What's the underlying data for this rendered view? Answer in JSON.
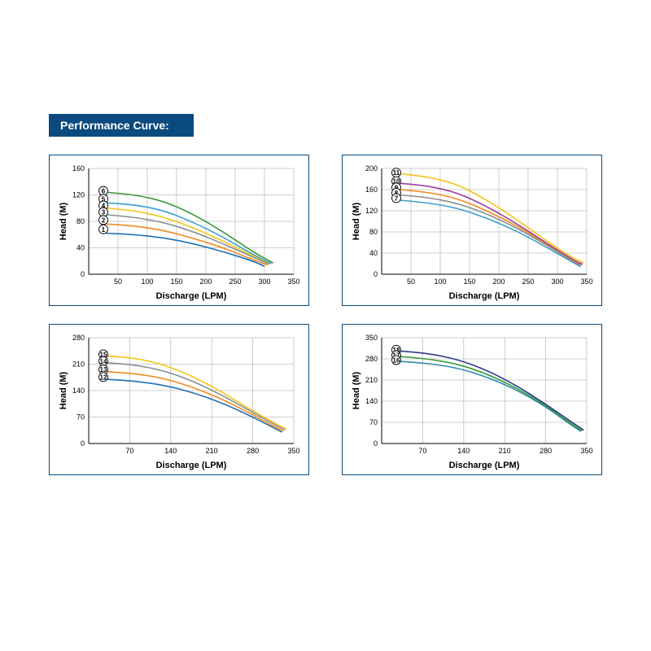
{
  "title": "Performance Curve:",
  "title_bg": "#0b4a7e",
  "panel_border": "#0b4a7e",
  "grid_color": "#bfbfbf",
  "axis_color": "#000000",
  "background": "#ffffff",
  "xlabel": "Discharge (LPM)",
  "ylabel": "Head (M)",
  "label_fontsize": 11,
  "tick_fontsize": 9,
  "panels": [
    {
      "xlim": [
        0,
        350
      ],
      "xticks": [
        50,
        100,
        150,
        200,
        250,
        300,
        350
      ],
      "ylim": [
        0,
        160
      ],
      "yticks": [
        0,
        40,
        80,
        120,
        160
      ],
      "markers": [
        {
          "id": "6",
          "y": 126
        },
        {
          "id": "5",
          "y": 114
        },
        {
          "id": "4",
          "y": 104
        },
        {
          "id": "3",
          "y": 94
        },
        {
          "id": "2",
          "y": 82
        },
        {
          "id": "1",
          "y": 68
        }
      ],
      "series": [
        {
          "id": "1",
          "color": "#1f6fb2",
          "pts": [
            [
              30,
              62
            ],
            [
              80,
              60
            ],
            [
              130,
              55
            ],
            [
              180,
              46
            ],
            [
              230,
              34
            ],
            [
              280,
              20
            ],
            [
              300,
              12
            ]
          ]
        },
        {
          "id": "2",
          "color": "#ef8a1d",
          "pts": [
            [
              30,
              76
            ],
            [
              80,
              73
            ],
            [
              130,
              66
            ],
            [
              180,
              54
            ],
            [
              230,
              40
            ],
            [
              280,
              22
            ],
            [
              305,
              14
            ]
          ]
        },
        {
          "id": "3",
          "color": "#8a8d8f",
          "pts": [
            [
              30,
              90
            ],
            [
              80,
              86
            ],
            [
              130,
              78
            ],
            [
              180,
              64
            ],
            [
              230,
              46
            ],
            [
              280,
              26
            ],
            [
              308,
              15
            ]
          ]
        },
        {
          "id": "4",
          "color": "#f5c518",
          "pts": [
            [
              30,
              100
            ],
            [
              80,
              96
            ],
            [
              130,
              86
            ],
            [
              180,
              70
            ],
            [
              230,
              50
            ],
            [
              280,
              28
            ],
            [
              310,
              16
            ]
          ]
        },
        {
          "id": "5",
          "color": "#3aa0cc",
          "pts": [
            [
              30,
              108
            ],
            [
              80,
              105
            ],
            [
              130,
              96
            ],
            [
              180,
              78
            ],
            [
              230,
              56
            ],
            [
              280,
              30
            ],
            [
              312,
              16
            ]
          ]
        },
        {
          "id": "6",
          "color": "#3a9a3a",
          "pts": [
            [
              30,
              124
            ],
            [
              80,
              120
            ],
            [
              130,
              110
            ],
            [
              180,
              90
            ],
            [
              230,
              64
            ],
            [
              280,
              34
            ],
            [
              315,
              17
            ]
          ]
        }
      ]
    },
    {
      "xlim": [
        0,
        350
      ],
      "xticks": [
        50,
        100,
        150,
        200,
        250,
        300,
        350
      ],
      "ylim": [
        0,
        200
      ],
      "yticks": [
        0,
        40,
        80,
        120,
        160,
        200
      ],
      "markers": [
        {
          "id": "11",
          "y": 192
        },
        {
          "id": "10",
          "y": 176
        },
        {
          "id": "9",
          "y": 164
        },
        {
          "id": "8",
          "y": 154
        },
        {
          "id": "7",
          "y": 144
        }
      ],
      "series": [
        {
          "id": "7",
          "color": "#3aa0cc",
          "pts": [
            [
              30,
              140
            ],
            [
              80,
              135
            ],
            [
              130,
              125
            ],
            [
              180,
              106
            ],
            [
              230,
              82
            ],
            [
              280,
              52
            ],
            [
              330,
              20
            ],
            [
              340,
              14
            ]
          ]
        },
        {
          "id": "8",
          "color": "#8a8d8f",
          "pts": [
            [
              30,
              150
            ],
            [
              80,
              145
            ],
            [
              130,
              134
            ],
            [
              180,
              114
            ],
            [
              230,
              88
            ],
            [
              280,
              56
            ],
            [
              330,
              22
            ],
            [
              340,
              16
            ]
          ]
        },
        {
          "id": "9",
          "color": "#ef8a1d",
          "pts": [
            [
              30,
              160
            ],
            [
              80,
              155
            ],
            [
              130,
              143
            ],
            [
              180,
              120
            ],
            [
              230,
              92
            ],
            [
              280,
              58
            ],
            [
              330,
              24
            ],
            [
              342,
              18
            ]
          ]
        },
        {
          "id": "10",
          "color": "#9b3fa0",
          "pts": [
            [
              30,
              172
            ],
            [
              80,
              167
            ],
            [
              130,
              154
            ],
            [
              180,
              128
            ],
            [
              230,
              96
            ],
            [
              280,
              60
            ],
            [
              330,
              25
            ],
            [
              343,
              19
            ]
          ]
        },
        {
          "id": "11",
          "color": "#f5c518",
          "pts": [
            [
              30,
              190
            ],
            [
              80,
              184
            ],
            [
              130,
              170
            ],
            [
              180,
              140
            ],
            [
              230,
              104
            ],
            [
              280,
              64
            ],
            [
              330,
              28
            ],
            [
              345,
              22
            ]
          ]
        }
      ]
    },
    {
      "xlim": [
        0,
        350
      ],
      "xticks": [
        70,
        140,
        210,
        280,
        350
      ],
      "ylim": [
        0,
        280
      ],
      "yticks": [
        0,
        70,
        140,
        210,
        280
      ],
      "markers": [
        {
          "id": "15",
          "y": 236
        },
        {
          "id": "14",
          "y": 218
        },
        {
          "id": "13",
          "y": 196
        },
        {
          "id": "12",
          "y": 176
        }
      ],
      "series": [
        {
          "id": "12",
          "color": "#1f6fb2",
          "pts": [
            [
              30,
              170
            ],
            [
              80,
              165
            ],
            [
              130,
              154
            ],
            [
              180,
              134
            ],
            [
              230,
              106
            ],
            [
              280,
              70
            ],
            [
              320,
              38
            ],
            [
              330,
              30
            ]
          ]
        },
        {
          "id": "13",
          "color": "#ef8a1d",
          "pts": [
            [
              30,
              190
            ],
            [
              80,
              185
            ],
            [
              130,
              172
            ],
            [
              180,
              148
            ],
            [
              230,
              116
            ],
            [
              280,
              76
            ],
            [
              320,
              42
            ],
            [
              332,
              33
            ]
          ]
        },
        {
          "id": "14",
          "color": "#8a8d8f",
          "pts": [
            [
              30,
              214
            ],
            [
              80,
              208
            ],
            [
              130,
              192
            ],
            [
              180,
              164
            ],
            [
              230,
              126
            ],
            [
              280,
              82
            ],
            [
              322,
              46
            ],
            [
              335,
              36
            ]
          ]
        },
        {
          "id": "15",
          "color": "#f5c518",
          "pts": [
            [
              30,
              232
            ],
            [
              80,
              226
            ],
            [
              130,
              208
            ],
            [
              180,
              176
            ],
            [
              230,
              134
            ],
            [
              280,
              86
            ],
            [
              325,
              48
            ],
            [
              337,
              38
            ]
          ]
        }
      ]
    },
    {
      "xlim": [
        0,
        350
      ],
      "xticks": [
        70,
        140,
        210,
        280,
        350
      ],
      "ylim": [
        0,
        350
      ],
      "yticks": [
        0,
        70,
        140,
        210,
        280,
        350
      ],
      "markers": [
        {
          "id": "18",
          "y": 310
        },
        {
          "id": "17",
          "y": 292
        },
        {
          "id": "16",
          "y": 276
        }
      ],
      "series": [
        {
          "id": "16",
          "color": "#2a8da6",
          "pts": [
            [
              30,
              272
            ],
            [
              80,
              265
            ],
            [
              130,
              250
            ],
            [
              180,
              220
            ],
            [
              230,
              178
            ],
            [
              280,
              122
            ],
            [
              320,
              66
            ],
            [
              340,
              40
            ]
          ]
        },
        {
          "id": "17",
          "color": "#3a9a3a",
          "pts": [
            [
              30,
              288
            ],
            [
              80,
              280
            ],
            [
              130,
              263
            ],
            [
              180,
              230
            ],
            [
              230,
              184
            ],
            [
              280,
              126
            ],
            [
              322,
              68
            ],
            [
              342,
              42
            ]
          ]
        },
        {
          "id": "18",
          "color": "#2d3a8c",
          "pts": [
            [
              30,
              306
            ],
            [
              80,
              298
            ],
            [
              130,
              278
            ],
            [
              180,
              242
            ],
            [
              230,
              192
            ],
            [
              280,
              130
            ],
            [
              325,
              70
            ],
            [
              345,
              44
            ]
          ]
        }
      ]
    }
  ]
}
